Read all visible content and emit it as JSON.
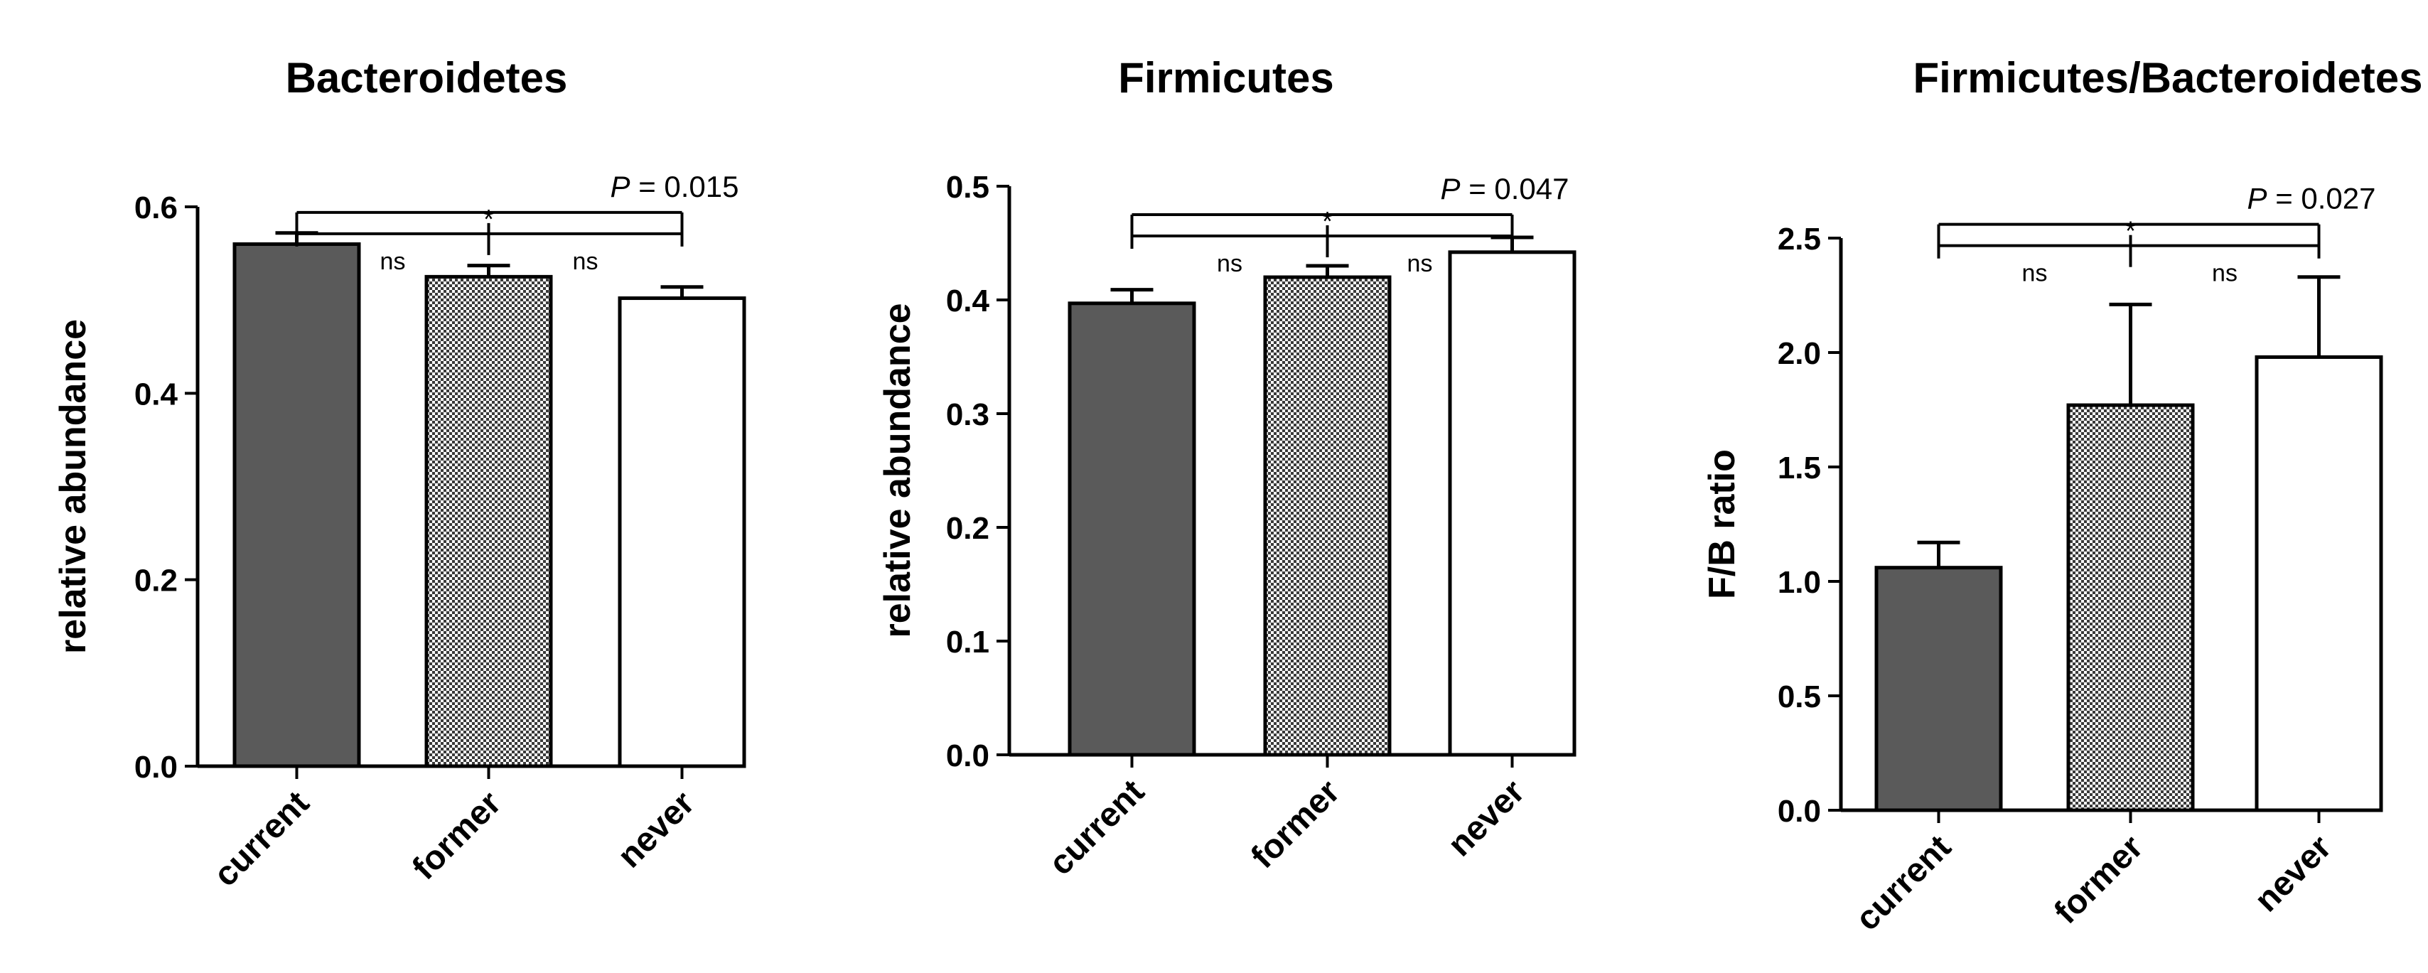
{
  "colors": {
    "current": "#5a5a5a",
    "former_pattern_dark": "#3a3a3a",
    "former_pattern_light": "#ffffff",
    "never": "#ffffff",
    "stroke": "#000000"
  },
  "chart_data": [
    {
      "type": "bar",
      "title": "Bacteroidetes",
      "ylabel": "relative abundance",
      "categories": [
        "current",
        "former",
        "never"
      ],
      "values": [
        0.56,
        0.525,
        0.502
      ],
      "errors": [
        0.012,
        0.012,
        0.012
      ],
      "ylim": [
        0,
        0.6
      ],
      "yticks": [
        0.0,
        0.2,
        0.4,
        0.6
      ],
      "ytick_labels": [
        "0.0",
        "0.2",
        "0.4",
        "0.6"
      ],
      "fills": [
        "solid",
        "checker",
        "white"
      ],
      "sig": {
        "ns_labels": [
          "ns",
          "ns"
        ],
        "overall": "*",
        "p_prefix": "P",
        "p_value": "= 0.015",
        "bracket_level": 0.594
      }
    },
    {
      "type": "bar",
      "title": "Firmicutes",
      "ylabel": "relative abundance",
      "categories": [
        "current",
        "former",
        "never"
      ],
      "values": [
        0.397,
        0.42,
        0.442
      ],
      "errors": [
        0.012,
        0.01,
        0.013
      ],
      "ylim": [
        0,
        0.5
      ],
      "yticks": [
        0.0,
        0.1,
        0.2,
        0.3,
        0.4,
        0.5
      ],
      "ytick_labels": [
        "0.0",
        "0.1",
        "0.2",
        "0.3",
        "0.4",
        "0.5"
      ],
      "fills": [
        "solid",
        "checker",
        "white"
      ],
      "sig": {
        "ns_labels": [
          "ns",
          "ns"
        ],
        "overall": "*",
        "p_prefix": "P",
        "p_value": "= 0.047",
        "bracket_level": 0.475
      }
    },
    {
      "type": "bar",
      "title": "Firmicutes/Bacteroidetes",
      "ylabel": "F/B ratio",
      "categories": [
        "current",
        "former",
        "never"
      ],
      "values": [
        1.06,
        1.77,
        1.98
      ],
      "errors": [
        0.11,
        0.44,
        0.35
      ],
      "ylim": [
        0,
        2.5
      ],
      "yticks": [
        0.0,
        0.5,
        1.0,
        1.5,
        2.0,
        2.5
      ],
      "ytick_labels": [
        "0.0",
        "0.5",
        "1.0",
        "1.5",
        "2.0",
        "2.5"
      ],
      "fills": [
        "solid",
        "checker",
        "white"
      ],
      "sig": {
        "ns_labels": [
          "ns",
          "ns"
        ],
        "overall": "*",
        "p_prefix": "P",
        "p_value": "= 0.027",
        "bracket_level": 2.56
      }
    }
  ]
}
